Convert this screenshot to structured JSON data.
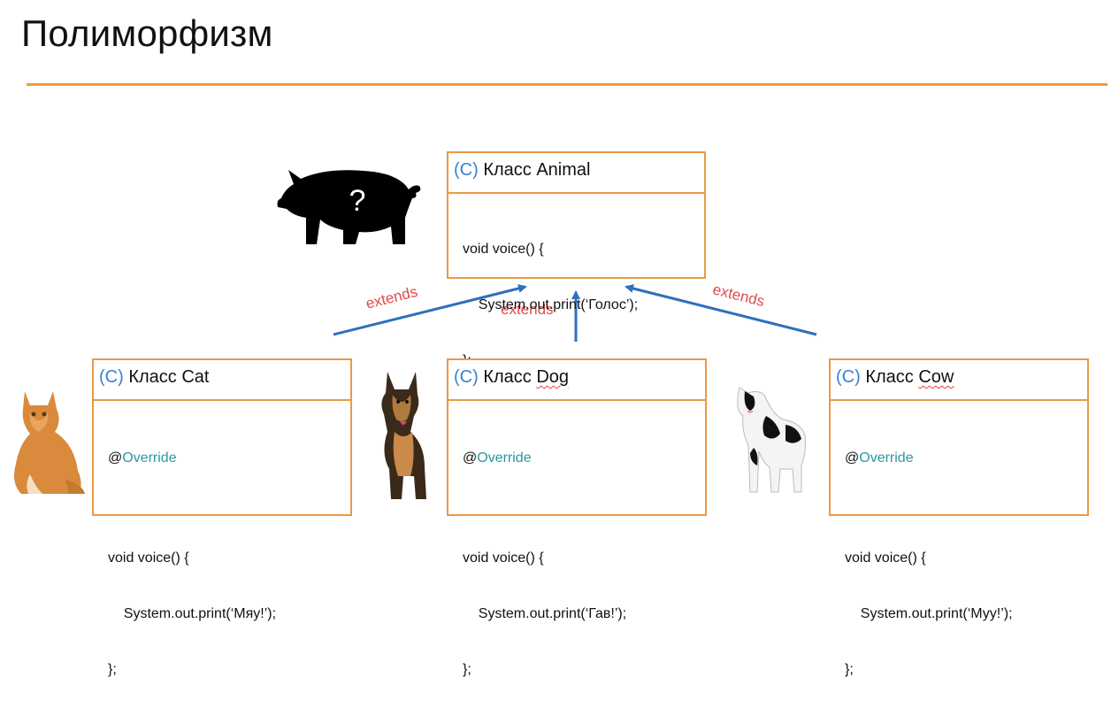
{
  "slide": {
    "title": "Полиморфизм"
  },
  "accent_color": "#f19b3a",
  "box_border_color": "#ea9a45",
  "arrow_color": "#2f6fbf",
  "extends_color": "#e24a4a",
  "parent": {
    "marker": "(C)",
    "name": "Класс Animal",
    "code": [
      "void voice() {",
      "    System.out.print(‘Голос’);",
      "};"
    ],
    "image_icon": "pig-silhouette-icon",
    "image_text": "?"
  },
  "children": [
    {
      "marker": "(C)",
      "name_prefix": "Класс ",
      "name": "Cat",
      "annotation_at": "@",
      "annotation_kw": "Override",
      "code": [
        "void voice() {",
        "    System.out.print(‘Мяу!’);",
        "};"
      ],
      "image_icon": "cat-icon"
    },
    {
      "marker": "(C)",
      "name_prefix": "Класс ",
      "name": "Dog",
      "annotation_at": "@",
      "annotation_kw": "Override",
      "code": [
        "void voice() {",
        "    System.out.print(‘Гав!’);",
        "};"
      ],
      "image_icon": "dog-icon"
    },
    {
      "marker": "(C)",
      "name_prefix": "Класс ",
      "name": "Cow",
      "annotation_at": "@",
      "annotation_kw": "Override",
      "code": [
        "void voice() {",
        "    System.out.print(‘Муу!’);",
        "};"
      ],
      "image_icon": "cow-icon"
    }
  ],
  "relations": {
    "extends_label": "extends"
  }
}
